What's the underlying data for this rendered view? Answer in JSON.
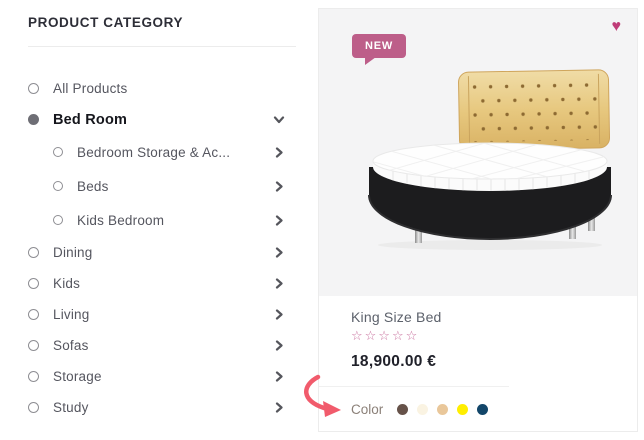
{
  "sidebar": {
    "title": "PRODUCT CATEGORY",
    "items": [
      {
        "label": "All Products",
        "sub": false,
        "active": false,
        "chevron": "none"
      },
      {
        "label": "Bed Room",
        "sub": false,
        "active": true,
        "chevron": "down"
      },
      {
        "label": "Bedroom Storage & Ac...",
        "sub": true,
        "active": false,
        "chevron": "right"
      },
      {
        "label": "Beds",
        "sub": true,
        "active": false,
        "chevron": "right"
      },
      {
        "label": "Kids Bedroom",
        "sub": true,
        "active": false,
        "chevron": "right"
      },
      {
        "label": "Dining",
        "sub": false,
        "active": false,
        "chevron": "right"
      },
      {
        "label": "Kids",
        "sub": false,
        "active": false,
        "chevron": "right"
      },
      {
        "label": "Living",
        "sub": false,
        "active": false,
        "chevron": "right"
      },
      {
        "label": "Sofas",
        "sub": false,
        "active": false,
        "chevron": "right"
      },
      {
        "label": "Storage",
        "sub": false,
        "active": false,
        "chevron": "right"
      },
      {
        "label": "Study",
        "sub": false,
        "active": false,
        "chevron": "right"
      }
    ]
  },
  "product": {
    "badge": "NEW",
    "name": "King Size Bed",
    "rating": {
      "stars_total": 5,
      "stars_filled": 0
    },
    "price": "18,900.00 €",
    "color_label": "Color",
    "swatches": [
      {
        "name": "dark-brown",
        "hex": "#665249"
      },
      {
        "name": "cream",
        "hex": "#faf3e2"
      },
      {
        "name": "tan",
        "hex": "#e9c79a"
      },
      {
        "name": "yellow",
        "hex": "#ffee00"
      },
      {
        "name": "navy",
        "hex": "#124669"
      }
    ]
  },
  "colors": {
    "badge_bg": "#bd5e89",
    "heart": "#bf3c78",
    "star": "#ca74a0",
    "arrow_annotation": "#f15b6c",
    "image_bg": "#f4f4f5",
    "active_text": "#15161c"
  },
  "icons": {
    "heart": "heart-icon",
    "chevron_right": "chevron-right-icon",
    "chevron_down": "chevron-down-icon",
    "radio": "radio-icon"
  }
}
